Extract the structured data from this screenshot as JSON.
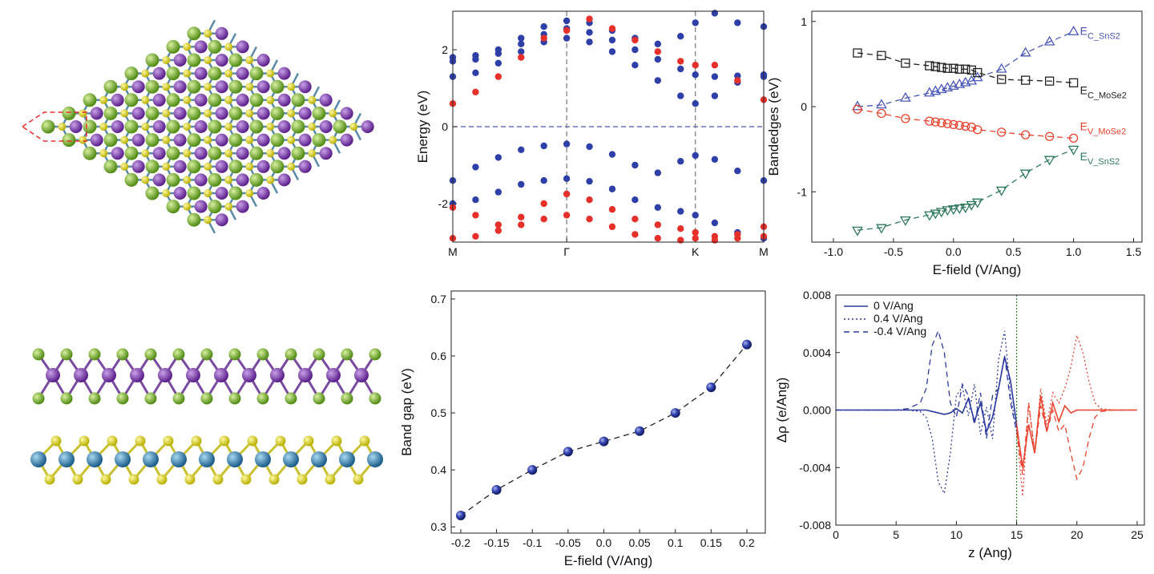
{
  "chart_data": [
    {
      "type": "scatter",
      "ylabel": "Energy (eV)",
      "xlim": [
        0,
        2.73
      ],
      "xticks": [
        {
          "value": 0,
          "label": "M"
        },
        {
          "value": 1,
          "label": "Γ"
        },
        {
          "value": 2.13,
          "label": "K"
        },
        {
          "value": 2.73,
          "label": "M"
        }
      ],
      "ylim": [
        -3,
        3
      ],
      "yticks": [
        -2,
        0,
        2
      ],
      "hlines": [
        0
      ],
      "vlines": [
        1,
        2.13
      ],
      "marker_size": 4.2,
      "x": [
        0,
        0.2,
        0.4,
        0.6,
        0.8,
        1.0,
        1.2,
        1.4,
        1.6,
        1.8,
        2.0,
        2.13,
        2.3,
        2.5,
        2.73
      ],
      "series": [
        {
          "color": "#2e3fa8",
          "marker": "dot",
          "values": [
            1.3,
            1.4,
            1.65,
            1.95,
            2.2,
            2.3,
            2.2,
            1.95,
            1.6,
            1.2,
            0.8,
            0.6,
            0.8,
            1.15,
            1.3
          ]
        },
        {
          "color": "#2e3fa8",
          "marker": "dot",
          "values": [
            1.7,
            1.75,
            1.9,
            2.15,
            2.4,
            2.55,
            2.45,
            2.25,
            2.0,
            1.75,
            1.5,
            1.35,
            1.3,
            1.32,
            1.35
          ]
        },
        {
          "color": "#2e3fa8",
          "marker": "dot",
          "values": [
            1.8,
            1.85,
            2.0,
            2.3,
            2.6,
            2.75,
            2.7,
            2.5,
            2.3,
            2.15,
            2.35,
            2.7,
            2.95,
            2.7,
            2.6
          ]
        },
        {
          "color": "#e8302a",
          "marker": "dot",
          "values": [
            0.6,
            0.9,
            1.3,
            1.8,
            2.3,
            2.5,
            2.8,
            2.55,
            2.25,
            1.95,
            1.7,
            1.6,
            1.6,
            1.2,
            0.7
          ]
        },
        {
          "color": "#2e3fa8",
          "marker": "dot",
          "values": [
            -1.4,
            -1.05,
            -0.8,
            -0.6,
            -0.5,
            -0.45,
            -0.52,
            -0.72,
            -1.0,
            -1.2,
            -0.9,
            -0.75,
            -0.85,
            -1.15,
            -1.4
          ]
        },
        {
          "color": "#2e3fa8",
          "marker": "dot",
          "values": [
            -2.0,
            -1.9,
            -1.7,
            -1.5,
            -1.4,
            -1.35,
            -1.42,
            -1.62,
            -1.9,
            -2.1,
            -2.2,
            -2.3,
            -2.5,
            -2.75,
            -2.9
          ]
        },
        {
          "color": "#e8302a",
          "marker": "dot",
          "values": [
            -2.1,
            -2.3,
            -2.55,
            -2.35,
            -2.0,
            -1.75,
            -1.9,
            -2.15,
            -2.4,
            -2.55,
            -2.65,
            -2.75,
            -2.85,
            -2.8,
            -2.6
          ]
        },
        {
          "color": "#e8302a",
          "marker": "dot",
          "values": [
            -2.9,
            -2.85,
            -2.7,
            -2.55,
            -2.4,
            -2.3,
            -2.4,
            -2.6,
            -2.8,
            -2.9,
            -2.95,
            -2.9,
            -2.95,
            -2.9,
            -2.85
          ]
        }
      ]
    },
    {
      "type": "line",
      "xlabel": "E-field (V/Ang)",
      "ylabel": "Bandedges (eV)",
      "xlim": [
        -1.18,
        1.57
      ],
      "xticks": [
        {
          "value": -1,
          "label": "-1.0"
        },
        -0.5,
        {
          "value": 0,
          "label": "0.0"
        },
        0.5,
        {
          "value": 1,
          "label": "1.0"
        },
        1.5
      ],
      "ylim": [
        -1.59,
        1.12
      ],
      "yticks": [
        -1,
        0,
        1
      ],
      "marker_size": 5,
      "x": [
        -0.8,
        -0.6,
        -0.4,
        -0.2,
        -0.15,
        -0.1,
        -0.05,
        0,
        0.05,
        0.1,
        0.15,
        0.2,
        0.4,
        0.6,
        0.8,
        1.0
      ],
      "series": [
        {
          "label": "E",
          "label_sub": "C_SnS2",
          "color": "#4a58b8",
          "marker": "triangle-up",
          "line_style": "dashed",
          "values": [
            0.0,
            0.02,
            0.1,
            0.16,
            0.18,
            0.2,
            0.22,
            0.24,
            0.26,
            0.28,
            0.3,
            0.34,
            0.44,
            0.63,
            0.76,
            0.88
          ]
        },
        {
          "label": "E",
          "label_sub": "C_MoSe2",
          "color": "#222222",
          "marker": "square",
          "line_style": "dashed",
          "values": [
            0.63,
            0.6,
            0.51,
            0.48,
            0.47,
            0.46,
            0.45,
            0.45,
            0.44,
            0.44,
            0.43,
            0.4,
            0.32,
            0.31,
            0.3,
            0.28
          ]
        },
        {
          "label": "E",
          "label_sub": "V_MoSe2",
          "color": "#e8432f",
          "marker": "circle",
          "line_style": "dashed",
          "values": [
            -0.03,
            -0.08,
            -0.14,
            -0.17,
            -0.18,
            -0.19,
            -0.2,
            -0.21,
            -0.22,
            -0.23,
            -0.24,
            -0.27,
            -0.3,
            -0.33,
            -0.35,
            -0.37
          ]
        },
        {
          "label": "E",
          "label_sub": "V_SnS2",
          "color": "#2f7a5a",
          "marker": "triangle-down",
          "line_style": "dashed",
          "values": [
            -1.45,
            -1.42,
            -1.33,
            -1.27,
            -1.25,
            -1.23,
            -1.21,
            -1.2,
            -1.19,
            -1.18,
            -1.15,
            -1.12,
            -0.98,
            -0.78,
            -0.62,
            -0.5
          ]
        }
      ]
    },
    {
      "type": "line",
      "xlabel": "E-field (V/Ang)",
      "ylabel": "Band gap (eV)",
      "xlim": [
        -0.2134,
        0.2258
      ],
      "xticks": [
        -0.2,
        -0.15,
        -0.1,
        -0.05,
        {
          "value": 0,
          "label": "0.0"
        },
        0.05,
        0.1,
        0.15,
        0.2
      ],
      "ylim": [
        0.289,
        0.714
      ],
      "yticks": [
        0.3,
        0.4,
        0.5,
        0.6,
        0.7
      ],
      "marker_size": 6,
      "x": [
        -0.2,
        -0.15,
        -0.1,
        -0.05,
        0,
        0.05,
        0.1,
        0.15,
        0.2
      ],
      "series": [
        {
          "color": "#2a3a9e",
          "marker": "ball",
          "line_style": "dashed",
          "line_color": "#222222",
          "values": [
            0.32,
            0.365,
            0.4,
            0.432,
            0.45,
            0.468,
            0.5,
            0.545,
            0.62
          ]
        }
      ]
    },
    {
      "type": "line",
      "xlabel": "z (Ang)",
      "ylabel": "Δρ (e/Ang)",
      "legend": "upper left",
      "xlim": [
        0,
        25.6
      ],
      "xticks": [
        0,
        5,
        10,
        15,
        20,
        25
      ],
      "ylim": [
        -0.008,
        0.008
      ],
      "yticks": [
        -0.008,
        -0.004,
        {
          "value": 0,
          "label": "0.000"
        },
        0.004,
        0.008
      ],
      "vlines": [
        15
      ],
      "vline_color": "#2e8b2e",
      "color_split": 15,
      "color_right": "#e8432f",
      "x": [
        0,
        2,
        4,
        5,
        6,
        7,
        7.5,
        8,
        8.5,
        9,
        9.5,
        10,
        10.5,
        11,
        11.5,
        12,
        12.5,
        13,
        13.5,
        14,
        14.5,
        15,
        15.5,
        16,
        16.5,
        17,
        17.5,
        18,
        18.5,
        19,
        19.5,
        20,
        20.5,
        21,
        21.5,
        22,
        23,
        25
      ],
      "series": [
        {
          "name": "0 V/Ang",
          "color": "#2b3a9c",
          "line_style": "solid",
          "values": [
            0,
            0,
            0,
            0,
            0,
            0,
            0,
            -0.0001,
            -0.0002,
            -0.0003,
            -0.0002,
            0.0001,
            -0.0002,
            0.0008,
            -0.0008,
            0.0005,
            -0.0015,
            -0.0005,
            0.0015,
            0.0037,
            0.002,
            -0.001,
            -0.004,
            -0.001,
            -0.003,
            0.001,
            -0.0015,
            0.0005,
            -0.0008,
            0.0003,
            -0.0002,
            0,
            0,
            0,
            0,
            0,
            0,
            0
          ]
        },
        {
          "name": "0.4 V/Ang",
          "color": "#2b3a9c",
          "line_style": "dotted",
          "values": [
            0,
            0,
            0,
            0,
            0,
            -0.0001,
            -0.0005,
            -0.002,
            -0.005,
            -0.0058,
            -0.003,
            0.001,
            0.0016,
            -0.0004,
            0.0018,
            -0.0017,
            0.0002,
            -0.002,
            0.0035,
            0.0055,
            0.001,
            -0.0015,
            -0.006,
            0.0005,
            -0.003,
            0.0015,
            -0.001,
            0.0012,
            0.0005,
            0.0015,
            0.003,
            0.0052,
            0.004,
            0.002,
            0.0005,
            0.0001,
            0,
            0
          ]
        },
        {
          "name": "-0.4 V/Ang",
          "color": "#2b3a9c",
          "line_style": "dashed",
          "values": [
            0,
            0,
            0,
            0,
            0.0001,
            0.0005,
            0.0015,
            0.0045,
            0.0055,
            0.004,
            0.0005,
            -0.0005,
            0.0018,
            0.001,
            -0.001,
            0.0012,
            -0.002,
            0.001,
            0.0015,
            0.0038,
            0.0005,
            -0.0015,
            -0.0045,
            0.0005,
            -0.003,
            0.0003,
            -0.0015,
            0,
            -0.0015,
            -0.001,
            -0.003,
            -0.0048,
            -0.004,
            -0.002,
            -0.0005,
            -0.0001,
            0,
            0
          ]
        }
      ]
    }
  ]
}
